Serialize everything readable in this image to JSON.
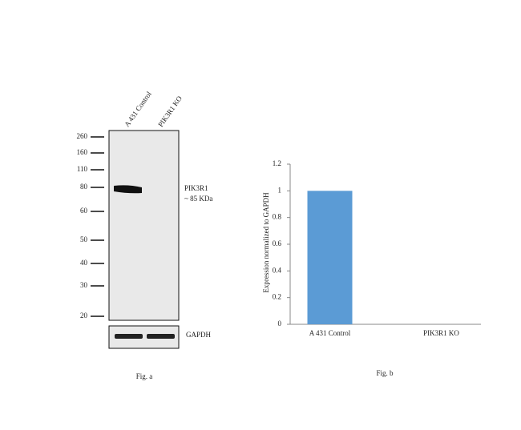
{
  "blot": {
    "lanes": [
      "A 431 Control",
      "PIK3R1 KO"
    ],
    "markers": [
      260,
      160,
      110,
      80,
      60,
      50,
      40,
      30,
      20
    ],
    "band_label": "PIK3R1",
    "band_size": "~ 85 KDa",
    "loading_control": "GAPDH",
    "caption": "Fig. a"
  },
  "chart_data": {
    "type": "bar",
    "ylabel": "Expression normalized to GAPDH",
    "caption": "Fig. b",
    "categories": [
      "A 431 Control",
      "PIK3R1 KO"
    ],
    "values": [
      1,
      0
    ],
    "color": "#5b9bd5",
    "ylim": [
      0,
      1.2
    ],
    "yticks": [
      0,
      0.2,
      0.4,
      0.6,
      0.8,
      1,
      1.2
    ]
  }
}
